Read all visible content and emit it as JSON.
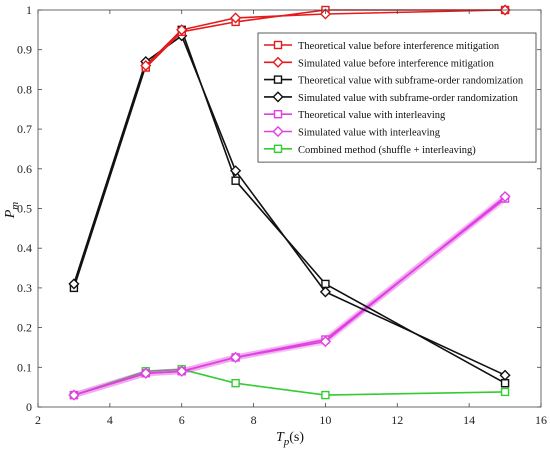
{
  "chart_data": {
    "type": "line",
    "xlabel": "T_p(s)",
    "ylabel": "P_m",
    "xlim": [
      2,
      16
    ],
    "ylim": [
      0,
      1
    ],
    "xticks": [
      2,
      4,
      6,
      8,
      10,
      12,
      14,
      16
    ],
    "yticks": [
      0,
      0.1,
      0.2,
      0.3,
      0.4,
      0.5,
      0.6,
      0.7,
      0.8,
      0.9,
      1
    ],
    "grid": false,
    "legend_position": "top-right",
    "x": [
      3,
      5,
      6,
      7.5,
      10,
      15
    ],
    "series": [
      {
        "name": "Theoretical value before interference mitigation",
        "color": "#e41a1c",
        "marker": "square",
        "values": [
          null,
          null,
          null,
          0.97,
          1.0,
          1.0
        ]
      },
      {
        "name": "Simulated value before interference mitigation",
        "color": "#e41a1c",
        "marker": "diamond",
        "values": [
          null,
          null,
          null,
          0.98,
          0.99,
          1.0
        ]
      },
      {
        "name": "Theoretical value with subframe-order randomization",
        "color": "#111111",
        "marker": "square",
        "values": [
          0.3,
          0.86,
          0.95,
          0.57,
          0.31,
          0.06
        ]
      },
      {
        "name": "Simulated value with subframe-order randomization",
        "color": "#111111",
        "marker": "diamond",
        "values": [
          0.31,
          0.87,
          0.935,
          0.595,
          0.29,
          0.08
        ]
      },
      {
        "name": "Theoretical value with interleaving",
        "color": "#e040e0",
        "marker": "square",
        "values": [
          0.03,
          0.085,
          0.09,
          0.125,
          0.17,
          0.525
        ]
      },
      {
        "name": "Simulated value with interleaving",
        "color": "#e040e0",
        "marker": "diamond",
        "values": [
          0.03,
          0.085,
          0.09,
          0.125,
          0.165,
          0.53
        ]
      },
      {
        "name": "Combined method (shuffle + interleaving)",
        "color": "#33cc33",
        "marker": "square",
        "values": [
          0.03,
          0.09,
          0.095,
          0.06,
          0.03,
          0.038
        ]
      }
    ],
    "red_curve_note_values": {
      "theoretical_full": [
        null,
        0.855,
        0.945,
        0.97,
        1.0,
        1.0
      ],
      "simulated_full": [
        null,
        0.86,
        0.95,
        0.98,
        0.99,
        1.0
      ]
    }
  }
}
